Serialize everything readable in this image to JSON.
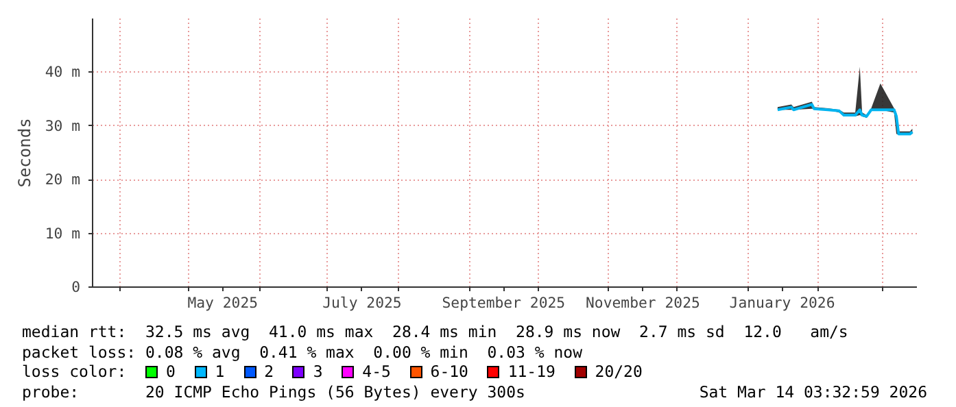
{
  "chart_data": {
    "type": "line",
    "ylabel": "Seconds",
    "xlim": [
      "2025-03-20",
      "2026-03-16"
    ],
    "xticks": [
      {
        "value": "2025-04-01",
        "label": null
      },
      {
        "value": "2025-05-01",
        "label": null
      },
      {
        "value": "2025-05-16",
        "label": "May 2025"
      },
      {
        "value": "2025-06-01",
        "label": null
      },
      {
        "value": "2025-07-01",
        "label": null
      },
      {
        "value": "2025-07-16",
        "label": "July 2025"
      },
      {
        "value": "2025-08-01",
        "label": null
      },
      {
        "value": "2025-09-01",
        "label": null
      },
      {
        "value": "2025-09-16",
        "label": "September 2025"
      },
      {
        "value": "2025-10-01",
        "label": null
      },
      {
        "value": "2025-11-01",
        "label": null
      },
      {
        "value": "2025-11-16",
        "label": "November 2025"
      },
      {
        "value": "2025-12-01",
        "label": null
      },
      {
        "value": "2026-01-01",
        "label": null
      },
      {
        "value": "2026-01-16",
        "label": "January 2026"
      },
      {
        "value": "2026-02-01",
        "label": null
      },
      {
        "value": "2026-03-01",
        "label": null
      }
    ],
    "ylim": [
      0,
      50
    ],
    "yticks": [
      0,
      {
        "value": 10,
        "label": "10 m"
      },
      {
        "value": 20,
        "label": "20 m"
      },
      {
        "value": 30,
        "label": "30 m"
      },
      {
        "value": 40,
        "label": "40 m"
      }
    ],
    "grid": true,
    "x": [
      "2026-01-14",
      "2026-01-20",
      "2026-01-21",
      "2026-01-29",
      "2026-01-30",
      "2026-02-05",
      "2026-02-10",
      "2026-02-12",
      "2026-02-17",
      "2026-02-19",
      "2026-02-20",
      "2026-02-22",
      "2026-02-24",
      "2026-02-28",
      "2026-03-06",
      "2026-03-07",
      "2026-03-08",
      "2026-03-13",
      "2026-03-14"
    ],
    "series": [
      {
        "color": "#00b4f0",
        "values": [
          33,
          33.5,
          33,
          34,
          33.2,
          33,
          32.8,
          32,
          32,
          33,
          32,
          31.8,
          33,
          33,
          33,
          31.8,
          28.5,
          28.5,
          28.9
        ],
        "lower": [
          33,
          33,
          33,
          33.2,
          33.2,
          33,
          32.5,
          31.8,
          31.8,
          32,
          31.8,
          31.5,
          33,
          33,
          32.5,
          28.5,
          28.4,
          28.4,
          28.5
        ],
        "upper": [
          33.5,
          34,
          33.5,
          34.5,
          33.5,
          33.3,
          33,
          32.5,
          32.5,
          41,
          32.5,
          32,
          33.3,
          37.9,
          33.3,
          32.5,
          29,
          29,
          29.5
        ]
      }
    ],
    "annotations": [
      "median rtt:  32.5 ms avg  41.0 ms max  28.4 ms min  28.9 ms now  2.7 ms sd  12.0   am/s",
      "packet loss: 0.08 % avg  0.41 % max  0.00 % min  0.03 % now",
      "loss color:",
      "0",
      "1",
      "2",
      "3",
      "4-5",
      "6-10",
      "11-19",
      "20/20",
      "probe:       20 ICMP Echo Pings (56 Bytes) every 300s",
      "Sat Mar 14 03:32:59 2026"
    ]
  }
}
